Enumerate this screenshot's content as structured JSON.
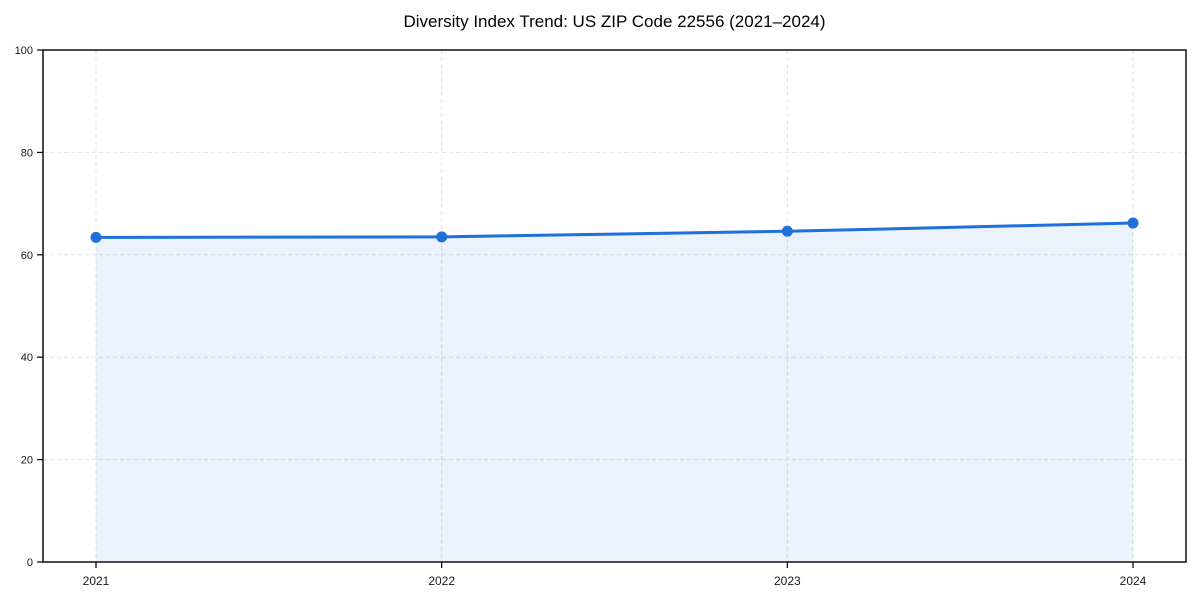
{
  "chart_data": {
    "type": "line",
    "title": "Diversity Index Trend: US ZIP Code 22556 (2021–2024)",
    "x": [
      "2021",
      "2022",
      "2023",
      "2024"
    ],
    "series": [
      {
        "name": "Diversity Index",
        "values": [
          63.4,
          63.5,
          64.6,
          66.2
        ]
      }
    ],
    "xlabel": "",
    "ylabel": "",
    "ylim": [
      0,
      100
    ],
    "yticks": [
      0,
      20,
      40,
      60,
      80,
      100
    ],
    "grid": true,
    "legend": false,
    "area_fill": true,
    "colors": {
      "line": "#1f6fdc",
      "fill_opacity": 0.09,
      "grid": "#e2e2e2",
      "frame": "#000000",
      "tick_text": "#1a1a1a",
      "background": "#ffffff"
    }
  }
}
